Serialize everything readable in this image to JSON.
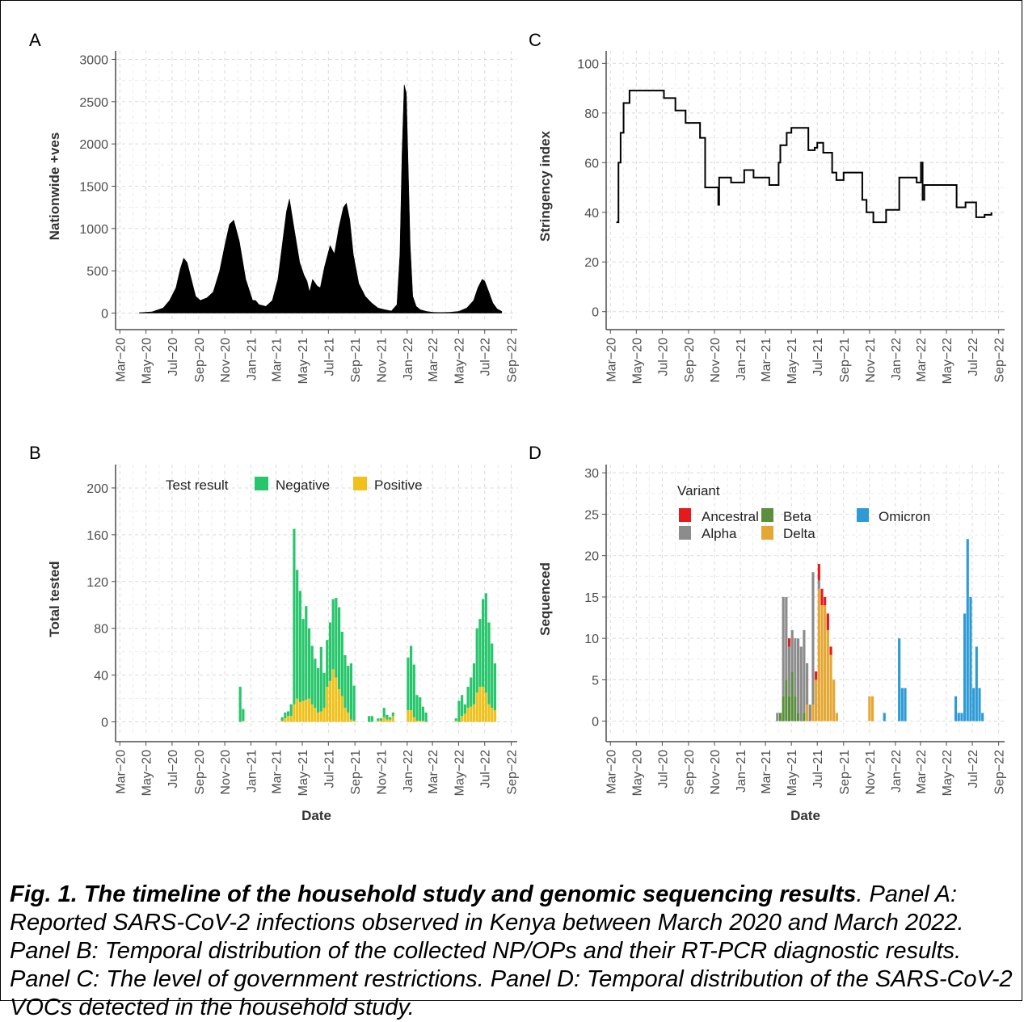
{
  "caption": {
    "title": "Fig. 1. The timeline of the household study and genomic sequencing results",
    "title_end": ".",
    "text": " Panel A: Reported SARS-CoV-2 infections observed in Kenya between March 2020 and March 2022. Panel B: Temporal distribution of the collected NP/OPs and their RT-PCR diagnostic results. Panel C: The level of government restrictions. Panel D: Temporal distribution of the SARS-CoV-2 VOCs detected in the household study."
  },
  "chart_data": [
    {
      "panel": "A",
      "type": "area",
      "xlabel": "",
      "ylabel": "Nationwide +ves",
      "x_ticks": [
        "Mar−20",
        "May−20",
        "Jul−20",
        "Sep−20",
        "Nov−20",
        "Jan−21",
        "Mar−21",
        "May−21",
        "Jul−21",
        "Sep−21",
        "Nov−21",
        "Jan−22",
        "Mar−22",
        "May−22",
        "Jul−22",
        "Sep−22"
      ],
      "y_ticks": [
        0,
        500,
        1000,
        1500,
        2000,
        2500,
        3000
      ],
      "ylim": [
        -100,
        3100
      ],
      "grid": true,
      "color": "#000000",
      "x": [
        "2020-04-15",
        "2020-05-15",
        "2020-06-10",
        "2020-06-25",
        "2020-07-10",
        "2020-07-20",
        "2020-07-28",
        "2020-08-05",
        "2020-08-15",
        "2020-08-25",
        "2020-09-05",
        "2020-09-20",
        "2020-10-05",
        "2020-10-20",
        "2020-11-01",
        "2020-11-12",
        "2020-11-22",
        "2020-12-05",
        "2020-12-20",
        "2021-01-05",
        "2021-01-12",
        "2021-01-20",
        "2021-02-05",
        "2021-02-20",
        "2021-03-05",
        "2021-03-15",
        "2021-03-25",
        "2021-04-01",
        "2021-04-12",
        "2021-04-25",
        "2021-05-05",
        "2021-05-12",
        "2021-05-18",
        "2021-05-25",
        "2021-06-05",
        "2021-06-12",
        "2021-06-22",
        "2021-07-05",
        "2021-07-15",
        "2021-07-25",
        "2021-08-05",
        "2021-08-12",
        "2021-08-20",
        "2021-08-28",
        "2021-09-10",
        "2021-09-25",
        "2021-10-10",
        "2021-10-25",
        "2021-11-10",
        "2021-11-25",
        "2021-12-08",
        "2021-12-15",
        "2021-12-20",
        "2021-12-25",
        "2021-12-30",
        "2022-01-03",
        "2022-01-08",
        "2022-01-14",
        "2022-01-22",
        "2022-02-01",
        "2022-02-15",
        "2022-03-01",
        "2022-03-20",
        "2022-04-10",
        "2022-05-01",
        "2022-05-20",
        "2022-06-05",
        "2022-06-15",
        "2022-06-25",
        "2022-07-01",
        "2022-07-10",
        "2022-07-20",
        "2022-07-30",
        "2022-08-10"
      ],
      "y": [
        5,
        15,
        60,
        150,
        300,
        520,
        650,
        600,
        400,
        200,
        150,
        180,
        250,
        500,
        800,
        1050,
        1100,
        850,
        400,
        150,
        150,
        100,
        80,
        150,
        400,
        800,
        1200,
        1350,
        1000,
        600,
        450,
        380,
        250,
        400,
        320,
        300,
        550,
        800,
        700,
        1000,
        1250,
        1300,
        1100,
        700,
        350,
        200,
        120,
        60,
        40,
        25,
        100,
        700,
        1900,
        2700,
        2600,
        1800,
        800,
        200,
        80,
        40,
        20,
        10,
        8,
        10,
        20,
        60,
        150,
        300,
        400,
        380,
        260,
        120,
        50,
        20
      ]
    },
    {
      "panel": "B",
      "type": "bar",
      "xlabel": "Date",
      "ylabel": "Total tested",
      "x_ticks": [
        "Mar−20",
        "May−20",
        "Jul−20",
        "Sep−20",
        "Nov−20",
        "Jan−21",
        "Mar−21",
        "May−21",
        "Jul−21",
        "Sep−21",
        "Nov−21",
        "Jan−22",
        "Mar−22",
        "May−22",
        "Jul−22",
        "Sep−22"
      ],
      "y_ticks": [
        0,
        40,
        80,
        120,
        160,
        200
      ],
      "ylim": [
        -10,
        220
      ],
      "grid": true,
      "legend": {
        "title": "Test result",
        "placement": "top",
        "items": [
          {
            "name": "Negative",
            "color": "#27c66b"
          },
          {
            "name": "Positive",
            "color": "#efc11a"
          }
        ]
      },
      "series": [
        {
          "name": "Negative",
          "x": [
            "2020-12-07",
            "2020-12-14",
            "2021-03-15",
            "2021-03-22",
            "2021-03-29",
            "2021-04-05",
            "2021-04-12",
            "2021-04-19",
            "2021-04-26",
            "2021-05-03",
            "2021-05-10",
            "2021-05-17",
            "2021-05-24",
            "2021-05-31",
            "2021-06-07",
            "2021-06-14",
            "2021-06-21",
            "2021-06-28",
            "2021-07-05",
            "2021-07-12",
            "2021-07-19",
            "2021-07-26",
            "2021-08-02",
            "2021-08-09",
            "2021-08-16",
            "2021-08-23",
            "2021-08-30",
            "2021-10-04",
            "2021-10-11",
            "2021-10-25",
            "2021-11-01",
            "2021-11-08",
            "2021-11-15",
            "2021-11-22",
            "2021-11-29",
            "2022-01-03",
            "2022-01-10",
            "2022-01-17",
            "2022-01-24",
            "2022-01-31",
            "2022-02-07",
            "2022-02-14",
            "2022-04-25",
            "2022-05-02",
            "2022-05-09",
            "2022-05-16",
            "2022-05-23",
            "2022-05-30",
            "2022-06-06",
            "2022-06-13",
            "2022-06-20",
            "2022-06-27",
            "2022-07-04",
            "2022-07-11",
            "2022-07-18",
            "2022-07-25"
          ],
          "values": [
            30,
            10,
            3,
            5,
            4,
            10,
            150,
            110,
            95,
            70,
            80,
            60,
            50,
            42,
            38,
            55,
            30,
            40,
            50,
            60,
            68,
            70,
            55,
            45,
            40,
            48,
            30,
            5,
            5,
            2,
            2,
            8,
            4,
            2,
            3,
            45,
            55,
            45,
            22,
            20,
            12,
            8,
            2,
            18,
            18,
            8,
            18,
            25,
            35,
            55,
            58,
            75,
            85,
            70,
            55,
            40
          ]
        },
        {
          "name": "Positive",
          "x": [
            "2020-12-07",
            "2020-12-14",
            "2021-03-15",
            "2021-03-22",
            "2021-03-29",
            "2021-04-05",
            "2021-04-12",
            "2021-04-19",
            "2021-04-26",
            "2021-05-03",
            "2021-05-10",
            "2021-05-17",
            "2021-05-24",
            "2021-05-31",
            "2021-06-07",
            "2021-06-14",
            "2021-06-21",
            "2021-06-28",
            "2021-07-05",
            "2021-07-12",
            "2021-07-19",
            "2021-07-26",
            "2021-08-02",
            "2021-08-09",
            "2021-08-16",
            "2021-08-23",
            "2021-08-30",
            "2021-10-04",
            "2021-10-11",
            "2021-10-25",
            "2021-11-01",
            "2021-11-08",
            "2021-11-15",
            "2021-11-22",
            "2021-11-29",
            "2022-01-03",
            "2022-01-10",
            "2022-01-17",
            "2022-01-24",
            "2022-01-31",
            "2022-02-07",
            "2022-02-14",
            "2022-04-25",
            "2022-05-02",
            "2022-05-09",
            "2022-05-16",
            "2022-05-23",
            "2022-05-30",
            "2022-06-06",
            "2022-06-13",
            "2022-06-20",
            "2022-06-27",
            "2022-07-04",
            "2022-07-11",
            "2022-07-18",
            "2022-07-25"
          ],
          "values": [
            0,
            1,
            1,
            3,
            5,
            5,
            15,
            20,
            17,
            18,
            19,
            20,
            15,
            12,
            8,
            9,
            12,
            30,
            35,
            45,
            38,
            28,
            22,
            12,
            8,
            2,
            1,
            0,
            0,
            1,
            1,
            4,
            2,
            2,
            5,
            10,
            10,
            4,
            1,
            1,
            1,
            0,
            1,
            0,
            5,
            7,
            12,
            13,
            15,
            25,
            30,
            30,
            25,
            15,
            12,
            10
          ]
        }
      ]
    },
    {
      "panel": "C",
      "type": "line",
      "xlabel": "",
      "ylabel": "Stringency index",
      "x_ticks": [
        "Mar−20",
        "May−20",
        "Jul−20",
        "Sep−20",
        "Nov−20",
        "Jan−21",
        "Mar−21",
        "May−21",
        "Jul−21",
        "Sep−21",
        "Nov−21",
        "Jan−22",
        "Mar−22",
        "May−22",
        "Jul−22",
        "Sep−22"
      ],
      "y_ticks": [
        0,
        20,
        40,
        60,
        80,
        100
      ],
      "ylim": [
        -4,
        105
      ],
      "grid": true,
      "color": "#000000",
      "x": [
        "2020-03-15",
        "2020-03-20",
        "2020-03-25",
        "2020-04-01",
        "2020-04-15",
        "2020-06-15",
        "2020-07-05",
        "2020-08-01",
        "2020-08-25",
        "2020-09-28",
        "2020-10-05",
        "2020-10-10",
        "2020-11-10",
        "2020-11-12",
        "2020-12-10",
        "2021-01-10",
        "2021-02-01",
        "2021-03-10",
        "2021-03-25",
        "2021-04-01",
        "2021-04-05",
        "2021-04-20",
        "2021-05-01",
        "2021-06-01",
        "2021-06-10",
        "2021-06-25",
        "2021-07-01",
        "2021-07-15",
        "2021-08-05",
        "2021-08-15",
        "2021-09-01",
        "2021-10-15",
        "2021-10-25",
        "2021-11-10",
        "2021-12-10",
        "2022-01-10",
        "2022-02-20",
        "2022-03-02",
        "2022-03-06",
        "2022-03-10",
        "2022-04-30",
        "2022-05-25",
        "2022-06-15",
        "2022-07-10",
        "2022-07-30",
        "2022-08-15"
      ],
      "y": [
        36,
        60,
        72,
        84,
        89,
        89,
        86,
        81,
        76,
        70,
        70,
        50,
        43,
        54,
        52,
        57,
        54,
        51,
        51,
        60,
        67,
        72,
        74,
        74,
        65,
        66,
        68,
        64,
        56,
        53,
        56,
        45,
        40,
        36,
        41,
        54,
        52,
        60,
        45,
        51,
        51,
        42,
        44,
        38,
        39,
        40
      ]
    },
    {
      "panel": "D",
      "type": "bar",
      "xlabel": "Date",
      "ylabel": "Sequenced",
      "x_ticks": [
        "Mar−20",
        "May−20",
        "Jul−20",
        "Sep−20",
        "Nov−20",
        "Jan−21",
        "Mar−21",
        "May−21",
        "Jul−21",
        "Sep−21",
        "Nov−21",
        "Jan−22",
        "Mar−22",
        "May−22",
        "Jul−22",
        "Sep−22"
      ],
      "y_ticks": [
        0,
        5,
        10,
        15,
        20,
        25,
        30
      ],
      "ylim": [
        -1.5,
        31
      ],
      "grid": true,
      "legend": {
        "title": "Variant",
        "placement": "top-left",
        "items": [
          {
            "name": "Ancestral",
            "color": "#e41a1c"
          },
          {
            "name": "Alpha",
            "color": "#8c8c8c"
          },
          {
            "name": "Beta",
            "color": "#5b8f3e"
          },
          {
            "name": "Delta",
            "color": "#e5a733"
          },
          {
            "name": "Omicron",
            "color": "#2e9bd6"
          }
        ]
      },
      "series": [
        {
          "name": "Ancestral",
          "x": [
            "2021-04-26",
            "2021-06-28",
            "2021-07-05",
            "2021-07-12",
            "2021-07-19",
            "2021-07-26",
            "2021-08-02"
          ],
          "values": [
            1,
            1,
            2,
            2,
            1,
            2,
            1
          ]
        },
        {
          "name": "Alpha",
          "x": [
            "2021-03-29",
            "2021-04-12",
            "2021-04-19",
            "2021-04-26",
            "2021-05-03",
            "2021-05-10",
            "2021-05-17",
            "2021-05-24",
            "2021-05-31",
            "2021-06-07",
            "2021-06-14",
            "2021-06-21",
            "2021-07-05"
          ],
          "values": [
            1,
            12,
            10,
            6,
            5,
            7,
            9,
            9,
            10,
            5,
            2,
            16,
            1
          ]
        },
        {
          "name": "Beta",
          "x": [
            "2021-04-05",
            "2021-04-12",
            "2021-04-19",
            "2021-04-26",
            "2021-05-03",
            "2021-05-10",
            "2021-05-17",
            "2021-05-31"
          ],
          "values": [
            1,
            3,
            5,
            3,
            6,
            3,
            1,
            1
          ]
        },
        {
          "name": "Delta",
          "x": [
            "2021-06-07",
            "2021-06-21",
            "2021-06-28",
            "2021-07-05",
            "2021-07-12",
            "2021-07-19",
            "2021-07-26",
            "2021-08-02",
            "2021-08-09",
            "2021-08-16",
            "2021-11-01",
            "2021-11-08"
          ],
          "values": [
            2,
            2,
            5,
            16,
            14,
            14,
            11,
            8,
            5,
            1,
            3,
            3
          ]
        },
        {
          "name": "Omicron",
          "x": [
            "2021-12-06",
            "2022-01-10",
            "2022-01-17",
            "2022-01-24",
            "2022-05-23",
            "2022-05-30",
            "2022-06-06",
            "2022-06-13",
            "2022-06-20",
            "2022-06-27",
            "2022-07-04",
            "2022-07-11",
            "2022-07-18",
            "2022-07-25",
            "2022-08-01"
          ],
          "values": [
            1,
            10,
            4,
            4,
            3,
            1,
            1,
            13,
            22,
            15,
            4,
            9,
            4,
            1,
            0
          ]
        }
      ]
    }
  ],
  "panels": {
    "A": {
      "letter": "A"
    },
    "B": {
      "letter": "B"
    },
    "C": {
      "letter": "C"
    },
    "D": {
      "letter": "D"
    }
  }
}
